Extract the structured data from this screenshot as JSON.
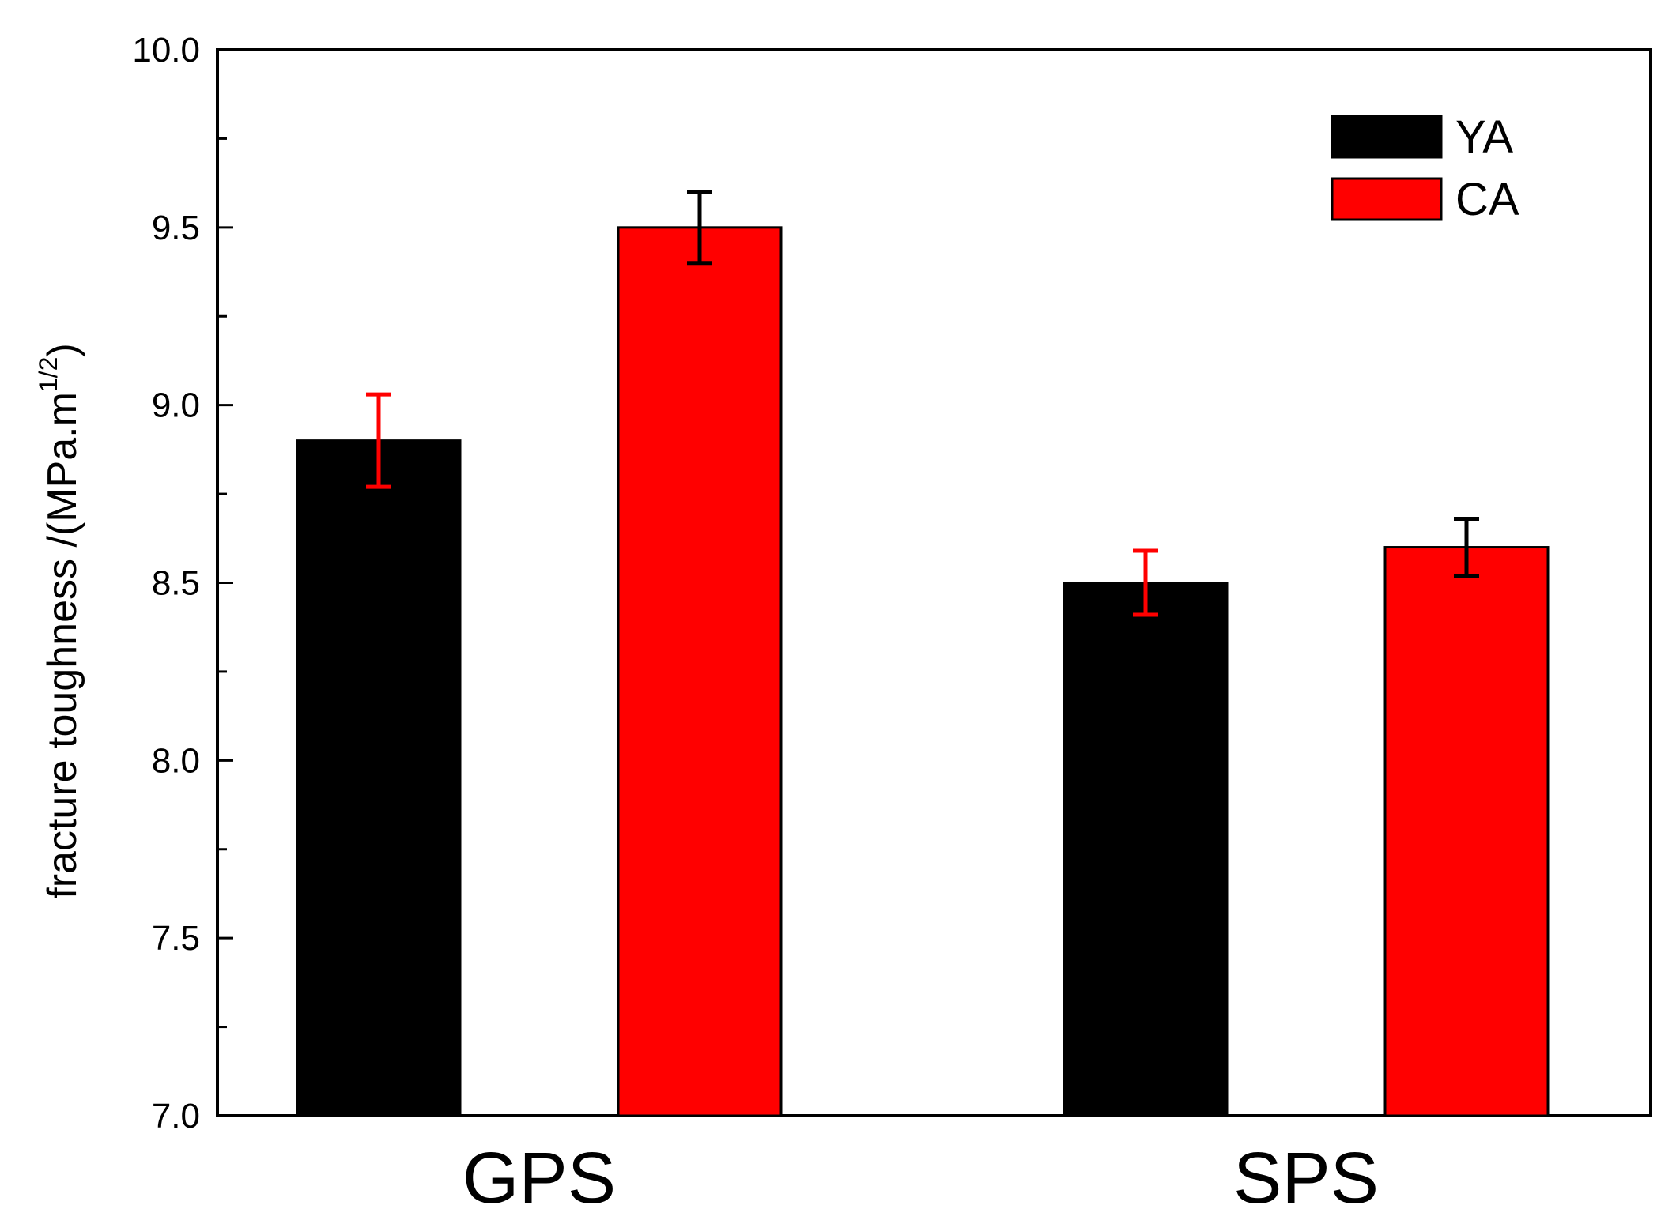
{
  "chart_data": {
    "type": "bar",
    "title": "",
    "xlabel": "",
    "ylabel": {
      "text": "fracture toughness /(MPa.m",
      "superscript": "1/2",
      "suffix": ")"
    },
    "categories": [
      "GPS",
      "SPS"
    ],
    "ylim": [
      7.0,
      10.0
    ],
    "yticks": [
      7.0,
      7.5,
      8.0,
      8.5,
      9.0,
      9.5,
      10.0
    ],
    "ytick_labels": [
      "7.0",
      "7.5",
      "8.0",
      "8.5",
      "9.0",
      "9.5",
      "10.0"
    ],
    "y_minor_step": 0.25,
    "grid": false,
    "legend_position": "top-right",
    "series": [
      {
        "name": "YA",
        "color": "#000000",
        "error_color": "#ff0000",
        "values": [
          8.9,
          8.5
        ],
        "errors": [
          0.13,
          0.09
        ]
      },
      {
        "name": "CA",
        "color": "#ff0000",
        "error_color": "#000000",
        "values": [
          9.5,
          8.6
        ],
        "errors": [
          0.1,
          0.08
        ]
      }
    ]
  }
}
